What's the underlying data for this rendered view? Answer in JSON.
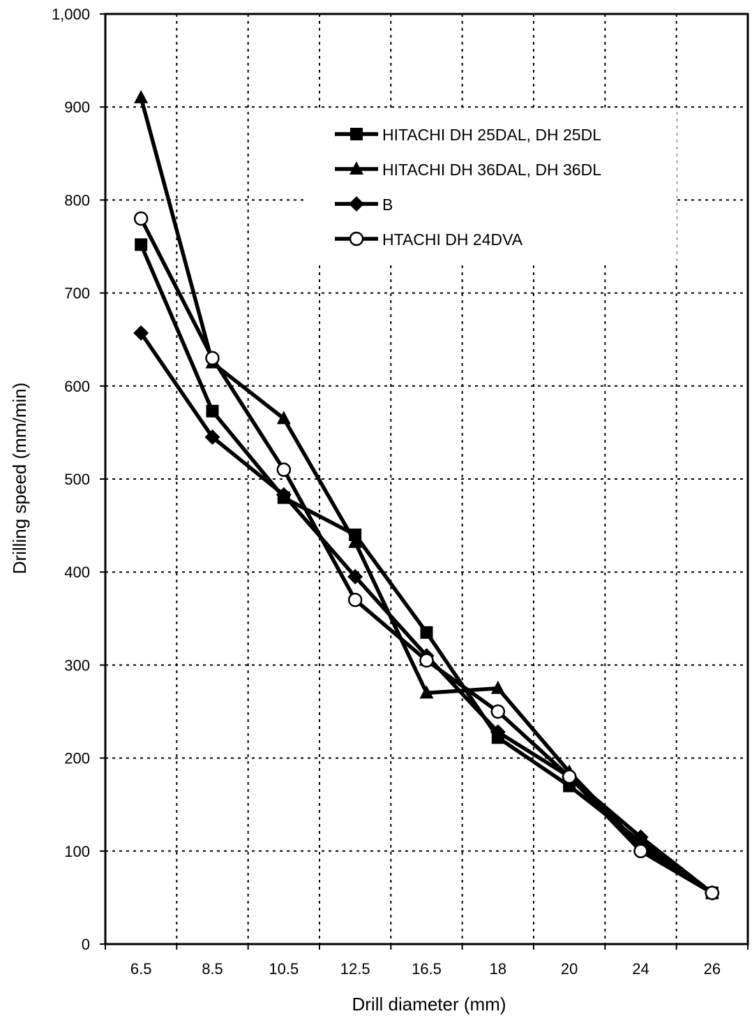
{
  "chart_data": {
    "type": "line",
    "title": "",
    "xlabel": "Drill diameter (mm)",
    "ylabel": "Drilling speed (mm/min)",
    "categories": [
      "6.5",
      "8.5",
      "10.5",
      "12.5",
      "16.5",
      "18",
      "20",
      "24",
      "26"
    ],
    "y_ticks": [
      "0",
      "100",
      "200",
      "300",
      "400",
      "500",
      "600",
      "700",
      "800",
      "900",
      "1,000"
    ],
    "ylim": [
      0,
      1000
    ],
    "grid": true,
    "legend_position": "top-right",
    "series": [
      {
        "name": "HITACHI DH 25DAL, DH 25DL",
        "marker": "square",
        "values": [
          752,
          573,
          480,
          440,
          335,
          222,
          170,
          110,
          55
        ]
      },
      {
        "name": "HITACHI DH 36DAL, DH 36DL",
        "marker": "triangle",
        "values": [
          910,
          625,
          565,
          432,
          270,
          275,
          185,
          105,
          55
        ]
      },
      {
        "name": "B",
        "marker": "diamond",
        "values": [
          657,
          545,
          483,
          395,
          310,
          228,
          180,
          115,
          55
        ]
      },
      {
        "name": "HTACHI DH 24DVA",
        "marker": "circle-open",
        "values": [
          780,
          630,
          510,
          370,
          305,
          250,
          180,
          100,
          55
        ]
      }
    ]
  }
}
